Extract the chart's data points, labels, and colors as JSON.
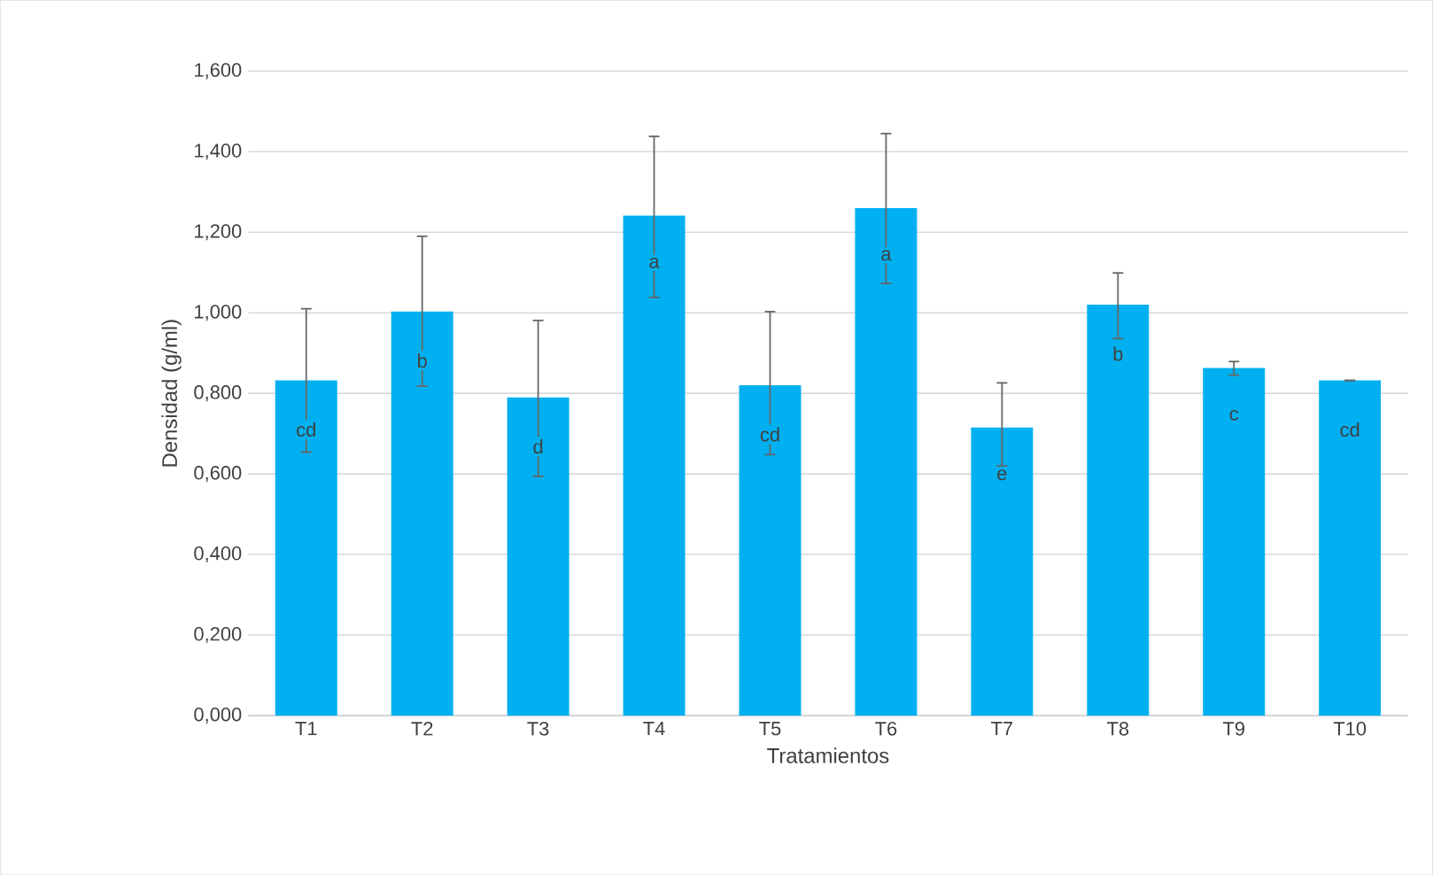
{
  "chart_data": {
    "type": "bar",
    "xlabel": "Tratamientos",
    "ylabel": "Densidad (g/ml)",
    "categories": [
      "T1",
      "T2",
      "T3",
      "T4",
      "T5",
      "T6",
      "T7",
      "T8",
      "T9",
      "T10"
    ],
    "values": [
      0.832,
      1.003,
      0.79,
      1.241,
      0.82,
      1.26,
      0.715,
      1.02,
      0.863,
      0.832
    ],
    "errors": [
      [
        0.654,
        1.01
      ],
      [
        0.818,
        1.19
      ],
      [
        0.594,
        0.981
      ],
      [
        1.038,
        1.438
      ],
      [
        0.648,
        1.003
      ],
      [
        1.073,
        1.445
      ],
      [
        0.62,
        0.826
      ],
      [
        0.936,
        1.099
      ],
      [
        0.845,
        0.879
      ],
      [
        0.832,
        0.832
      ]
    ],
    "color": "#00b0f0",
    "ylim": [
      0,
      1.6
    ],
    "yticks": [
      {
        "value": 0,
        "label": "0,000"
      },
      {
        "value": 0.2,
        "label": "0,200"
      },
      {
        "value": 0.4,
        "label": "0,400"
      },
      {
        "value": 0.6,
        "label": "0,600"
      },
      {
        "value": 0.8,
        "label": "0,800"
      },
      {
        "value": 1.0,
        "label": "1,000"
      },
      {
        "value": 1.2,
        "label": "1,200"
      },
      {
        "value": 1.4,
        "label": "1,400"
      },
      {
        "value": 1.6,
        "label": "1,600"
      }
    ],
    "grid": "y",
    "annotations": [
      "cd",
      "b",
      "d",
      "a",
      "cd",
      "a",
      "e",
      "b",
      "c",
      "cd"
    ]
  }
}
